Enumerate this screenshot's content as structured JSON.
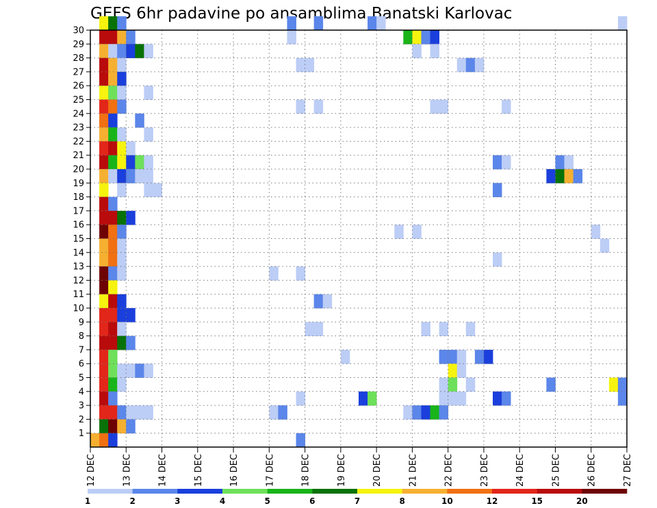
{
  "chart_data": {
    "type": "heatmap",
    "title": "GEFS 6hr padavine po ansamblima Banatski Karlovac",
    "x_tick_labels": [
      "12 DEC",
      "13 DEC",
      "14 DEC",
      "15 DEC",
      "16 DEC",
      "17 DEC",
      "18 DEC",
      "19 DEC",
      "20 DEC",
      "21 DEC",
      "22 DEC",
      "23 DEC",
      "24 DEC",
      "25 DEC",
      "26 DEC",
      "27 DEC"
    ],
    "y_tick_labels": [
      "1",
      "2",
      "3",
      "4",
      "5",
      "6",
      "7",
      "8",
      "9",
      "10",
      "11",
      "12",
      "13",
      "14",
      "15",
      "16",
      "17",
      "18",
      "19",
      "20",
      "21",
      "22",
      "23",
      "24",
      "25",
      "26",
      "27",
      "28",
      "29",
      "30"
    ],
    "ylim": [
      0,
      30
    ],
    "x_steps_per_day": 4,
    "x_total_steps": 60,
    "grid": true,
    "colorbar": {
      "placement": "bottom",
      "tick_labels": [
        "1",
        "2",
        "3",
        "4",
        "5",
        "6",
        "7",
        "8",
        "10",
        "12",
        "15",
        "20"
      ],
      "colors": [
        "#bccdf6",
        "#5b86ea",
        "#1a3fdc",
        "#6ee05a",
        "#19b41a",
        "#087208",
        "#f6f30f",
        "#f6b031",
        "#f07012",
        "#e2261a",
        "#b90b0b",
        "#6e0303"
      ]
    },
    "cells": [
      {
        "m": 30,
        "s": [
          [
            1,
            6
          ],
          [
            2,
            5
          ],
          [
            3,
            1
          ],
          [
            22,
            1
          ],
          [
            25,
            1
          ],
          [
            31,
            1
          ],
          [
            32,
            0
          ],
          [
            59,
            0
          ]
        ]
      },
      {
        "m": 29,
        "s": [
          [
            1,
            10
          ],
          [
            2,
            10
          ],
          [
            3,
            7
          ],
          [
            4,
            1
          ],
          [
            22,
            0
          ],
          [
            35,
            4
          ],
          [
            36,
            6
          ],
          [
            37,
            1
          ],
          [
            38,
            2
          ]
        ]
      },
      {
        "m": 28,
        "s": [
          [
            1,
            7
          ],
          [
            2,
            0
          ],
          [
            3,
            1
          ],
          [
            4,
            2
          ],
          [
            5,
            5
          ],
          [
            6,
            0
          ],
          [
            36,
            0
          ],
          [
            38,
            0
          ]
        ]
      },
      {
        "m": 27,
        "s": [
          [
            1,
            10
          ],
          [
            2,
            7
          ],
          [
            3,
            0
          ],
          [
            23,
            0
          ],
          [
            24,
            0
          ],
          [
            41,
            0
          ],
          [
            42,
            1
          ],
          [
            43,
            0
          ]
        ]
      },
      {
        "m": 26,
        "s": [
          [
            1,
            10
          ],
          [
            2,
            7
          ],
          [
            3,
            2
          ]
        ]
      },
      {
        "m": 25,
        "s": [
          [
            1,
            6
          ],
          [
            2,
            3
          ],
          [
            3,
            0
          ],
          [
            6,
            0
          ]
        ]
      },
      {
        "m": 24,
        "s": [
          [
            1,
            9
          ],
          [
            2,
            8
          ],
          [
            3,
            1
          ],
          [
            23,
            0
          ],
          [
            25,
            0
          ],
          [
            38,
            0
          ],
          [
            39,
            0
          ],
          [
            46,
            0
          ]
        ]
      },
      {
        "m": 23,
        "s": [
          [
            1,
            8
          ],
          [
            2,
            2
          ],
          [
            5,
            1
          ]
        ]
      },
      {
        "m": 22,
        "s": [
          [
            1,
            7
          ],
          [
            2,
            4
          ],
          [
            3,
            0
          ],
          [
            6,
            0
          ]
        ]
      },
      {
        "m": 21,
        "s": [
          [
            1,
            9
          ],
          [
            2,
            10
          ],
          [
            3,
            6
          ],
          [
            4,
            0
          ]
        ]
      },
      {
        "m": 20,
        "s": [
          [
            1,
            10
          ],
          [
            2,
            4
          ],
          [
            3,
            6
          ],
          [
            4,
            2
          ],
          [
            5,
            3
          ],
          [
            6,
            0
          ],
          [
            45,
            1
          ],
          [
            46,
            0
          ],
          [
            52,
            1
          ],
          [
            53,
            0
          ]
        ]
      },
      {
        "m": 19,
        "s": [
          [
            1,
            7
          ],
          [
            2,
            0
          ],
          [
            3,
            2
          ],
          [
            4,
            1
          ],
          [
            5,
            0
          ],
          [
            6,
            0
          ],
          [
            51,
            2
          ],
          [
            52,
            5
          ],
          [
            53,
            7
          ],
          [
            54,
            1
          ]
        ]
      },
      {
        "m": 18,
        "s": [
          [
            1,
            6
          ],
          [
            3,
            0
          ],
          [
            6,
            0
          ],
          [
            7,
            0
          ],
          [
            45,
            1
          ]
        ]
      },
      {
        "m": 17,
        "s": [
          [
            1,
            10
          ],
          [
            2,
            1
          ]
        ]
      },
      {
        "m": 16,
        "s": [
          [
            1,
            10
          ],
          [
            2,
            10
          ],
          [
            3,
            5
          ],
          [
            4,
            2
          ]
        ]
      },
      {
        "m": 15,
        "s": [
          [
            1,
            11
          ],
          [
            2,
            8
          ],
          [
            3,
            1
          ],
          [
            34,
            0
          ],
          [
            36,
            0
          ],
          [
            56,
            0
          ]
        ]
      },
      {
        "m": 14,
        "s": [
          [
            1,
            7
          ],
          [
            2,
            8
          ],
          [
            3,
            0
          ],
          [
            57,
            0
          ]
        ]
      },
      {
        "m": 13,
        "s": [
          [
            1,
            7
          ],
          [
            2,
            8
          ],
          [
            3,
            0
          ],
          [
            45,
            0
          ]
        ]
      },
      {
        "m": 12,
        "s": [
          [
            1,
            11
          ],
          [
            2,
            1
          ],
          [
            3,
            0
          ],
          [
            20,
            0
          ],
          [
            23,
            0
          ]
        ]
      },
      {
        "m": 11,
        "s": [
          [
            1,
            11
          ],
          [
            2,
            6
          ]
        ]
      },
      {
        "m": 10,
        "s": [
          [
            1,
            6
          ],
          [
            2,
            10
          ],
          [
            3,
            2
          ],
          [
            25,
            1
          ],
          [
            26,
            0
          ]
        ]
      },
      {
        "m": 9,
        "s": [
          [
            1,
            9
          ],
          [
            2,
            9
          ],
          [
            3,
            2
          ],
          [
            4,
            2
          ]
        ]
      },
      {
        "m": 8,
        "s": [
          [
            1,
            9
          ],
          [
            2,
            10
          ],
          [
            3,
            0
          ],
          [
            24,
            0
          ],
          [
            25,
            0
          ],
          [
            37,
            0
          ],
          [
            39,
            0
          ],
          [
            42,
            0
          ]
        ]
      },
      {
        "m": 7,
        "s": [
          [
            1,
            10
          ],
          [
            2,
            10
          ],
          [
            3,
            5
          ],
          [
            4,
            1
          ]
        ]
      },
      {
        "m": 6,
        "s": [
          [
            1,
            9
          ],
          [
            2,
            3
          ],
          [
            28,
            0
          ],
          [
            39,
            1
          ],
          [
            40,
            1
          ],
          [
            41,
            0
          ],
          [
            43,
            1
          ],
          [
            44,
            2
          ]
        ]
      },
      {
        "m": 5,
        "s": [
          [
            1,
            9
          ],
          [
            2,
            3
          ],
          [
            3,
            0
          ],
          [
            4,
            0
          ],
          [
            5,
            1
          ],
          [
            6,
            0
          ],
          [
            40,
            6
          ],
          [
            41,
            0
          ]
        ]
      },
      {
        "m": 4,
        "s": [
          [
            1,
            9
          ],
          [
            2,
            4
          ],
          [
            3,
            0
          ],
          [
            39,
            0
          ],
          [
            40,
            3
          ],
          [
            42,
            0
          ],
          [
            51,
            1
          ],
          [
            58,
            6
          ],
          [
            59,
            1
          ]
        ]
      },
      {
        "m": 3,
        "s": [
          [
            1,
            10
          ],
          [
            2,
            1
          ],
          [
            23,
            0
          ],
          [
            30,
            2
          ],
          [
            31,
            3
          ],
          [
            39,
            0
          ],
          [
            40,
            0
          ],
          [
            41,
            0
          ],
          [
            45,
            2
          ],
          [
            46,
            1
          ],
          [
            59,
            1
          ]
        ]
      },
      {
        "m": 2,
        "s": [
          [
            1,
            9
          ],
          [
            2,
            9
          ],
          [
            3,
            1
          ],
          [
            4,
            0
          ],
          [
            5,
            0
          ],
          [
            6,
            0
          ],
          [
            20,
            0
          ],
          [
            21,
            1
          ],
          [
            35,
            0
          ],
          [
            36,
            1
          ],
          [
            37,
            2
          ],
          [
            38,
            4
          ],
          [
            39,
            1
          ]
        ]
      },
      {
        "m": 1,
        "s": [
          [
            1,
            5
          ],
          [
            2,
            11
          ],
          [
            3,
            7
          ],
          [
            4,
            1
          ]
        ]
      },
      {
        "m": 0,
        "s": [
          [
            0,
            7
          ],
          [
            1,
            8
          ],
          [
            2,
            2
          ],
          [
            23,
            1
          ]
        ]
      }
    ]
  }
}
